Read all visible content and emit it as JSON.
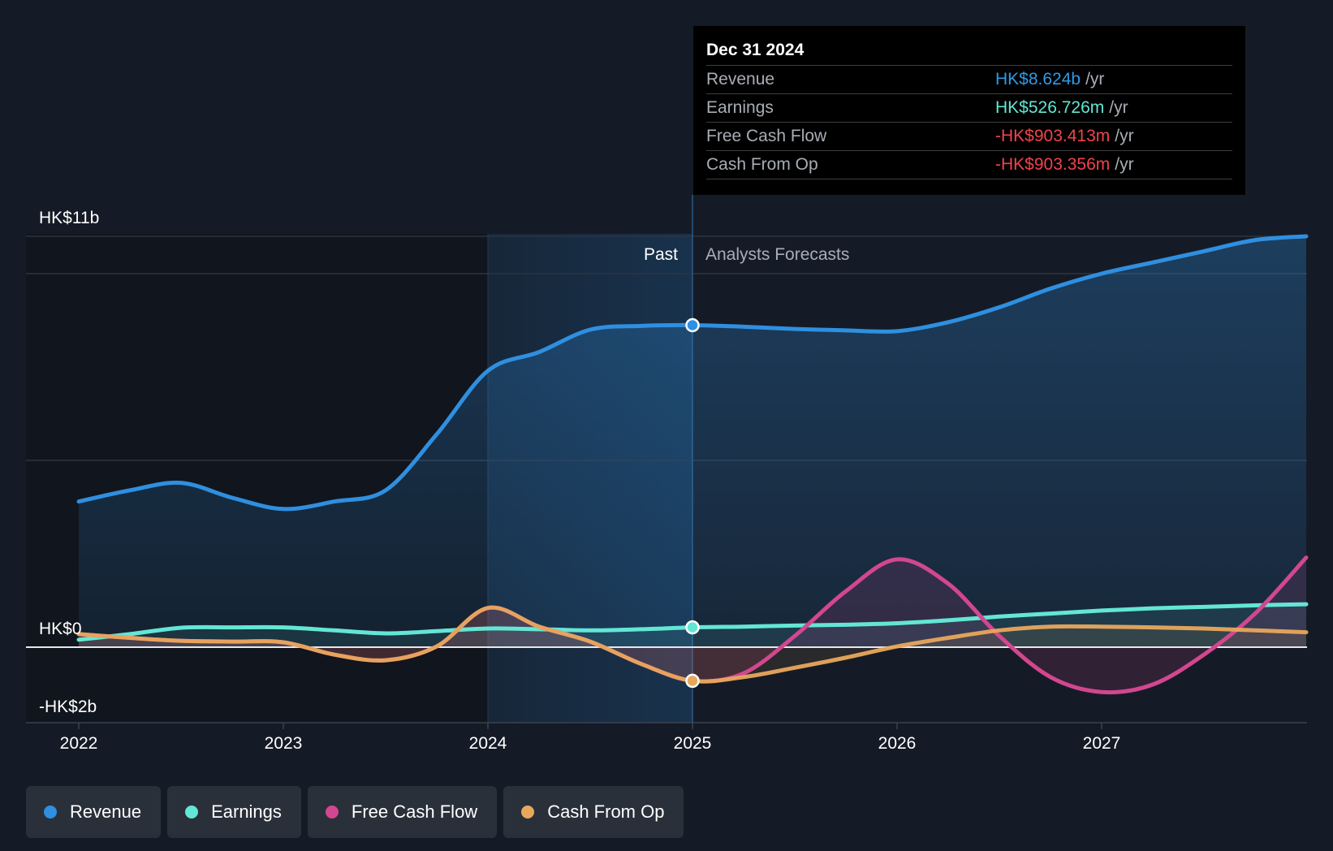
{
  "chart_data": {
    "type": "line",
    "x": [
      2022.0,
      2022.25,
      2022.5,
      2022.75,
      2023.0,
      2023.25,
      2023.5,
      2023.75,
      2024.0,
      2024.25,
      2024.5,
      2024.75,
      2025.0,
      2025.25,
      2025.5,
      2025.75,
      2026.0,
      2026.25,
      2026.5,
      2026.75,
      2027.0,
      2027.25,
      2027.5,
      2027.75,
      2028.0
    ],
    "series": [
      {
        "name": "Revenue",
        "color": "#2f8fe0",
        "values": [
          3.9,
          4.2,
          4.4,
          4.0,
          3.7,
          3.9,
          4.2,
          5.7,
          7.4,
          7.9,
          8.5,
          8.6,
          8.62,
          8.58,
          8.52,
          8.48,
          8.46,
          8.7,
          9.1,
          9.6,
          10.0,
          10.3,
          10.6,
          10.9,
          11.0
        ]
      },
      {
        "name": "Earnings",
        "color": "#63e6d5",
        "values": [
          0.2,
          0.35,
          0.52,
          0.53,
          0.53,
          0.45,
          0.37,
          0.43,
          0.5,
          0.48,
          0.45,
          0.48,
          0.53,
          0.55,
          0.58,
          0.6,
          0.64,
          0.72,
          0.82,
          0.9,
          0.98,
          1.04,
          1.08,
          1.12,
          1.15
        ]
      },
      {
        "name": "Free Cash Flow",
        "color": "#d2478f",
        "values": [
          0.35,
          0.25,
          0.17,
          0.15,
          0.13,
          -0.2,
          -0.35,
          0.02,
          1.05,
          0.55,
          0.15,
          -0.45,
          -0.9,
          -0.7,
          0.3,
          1.5,
          2.35,
          1.7,
          0.3,
          -0.8,
          -1.2,
          -1.0,
          -0.2,
          0.9,
          2.4
        ]
      },
      {
        "name": "Cash From Op",
        "color": "#e8a85c",
        "values": [
          0.35,
          0.25,
          0.17,
          0.15,
          0.13,
          -0.2,
          -0.35,
          0.02,
          1.05,
          0.55,
          0.15,
          -0.45,
          -0.9,
          -0.8,
          -0.55,
          -0.28,
          0.02,
          0.25,
          0.45,
          0.55,
          0.55,
          0.53,
          0.5,
          0.45,
          0.4
        ]
      }
    ],
    "x_ticks": [
      "2022",
      "2023",
      "2024",
      "2025",
      "2026",
      "2027"
    ],
    "y_ticks": [
      {
        "value": 11,
        "label": "HK$11b"
      },
      {
        "value": 0,
        "label": "HK$0"
      },
      {
        "value": -2,
        "label": "-HK$2b"
      }
    ],
    "ylim": [
      -2,
      11
    ],
    "xlim": [
      2021.75,
      2028.0
    ],
    "past_label": "Past",
    "forecast_label": "Analysts Forecasts",
    "divider_x": 2025.0,
    "highlight_x": [
      2024.0,
      2025.0
    ],
    "grid": true,
    "legend_position": "bottom-left"
  },
  "tooltip": {
    "date": "Dec 31 2024",
    "rows": [
      {
        "label": "Revenue",
        "value": "HK$8.624b",
        "unit": "/yr",
        "color": "#2f9ae6"
      },
      {
        "label": "Earnings",
        "value": "HK$526.726m",
        "unit": "/yr",
        "color": "#63e6d5"
      },
      {
        "label": "Free Cash Flow",
        "value": "-HK$903.413m",
        "unit": "/yr",
        "color": "#f0444b"
      },
      {
        "label": "Cash From Op",
        "value": "-HK$903.356m",
        "unit": "/yr",
        "color": "#f0444b"
      }
    ]
  },
  "legend": [
    {
      "label": "Revenue",
      "color": "#2f8fe0"
    },
    {
      "label": "Earnings",
      "color": "#63e6d5"
    },
    {
      "label": "Free Cash Flow",
      "color": "#d2478f"
    },
    {
      "label": "Cash From Op",
      "color": "#e8a85c"
    }
  ]
}
